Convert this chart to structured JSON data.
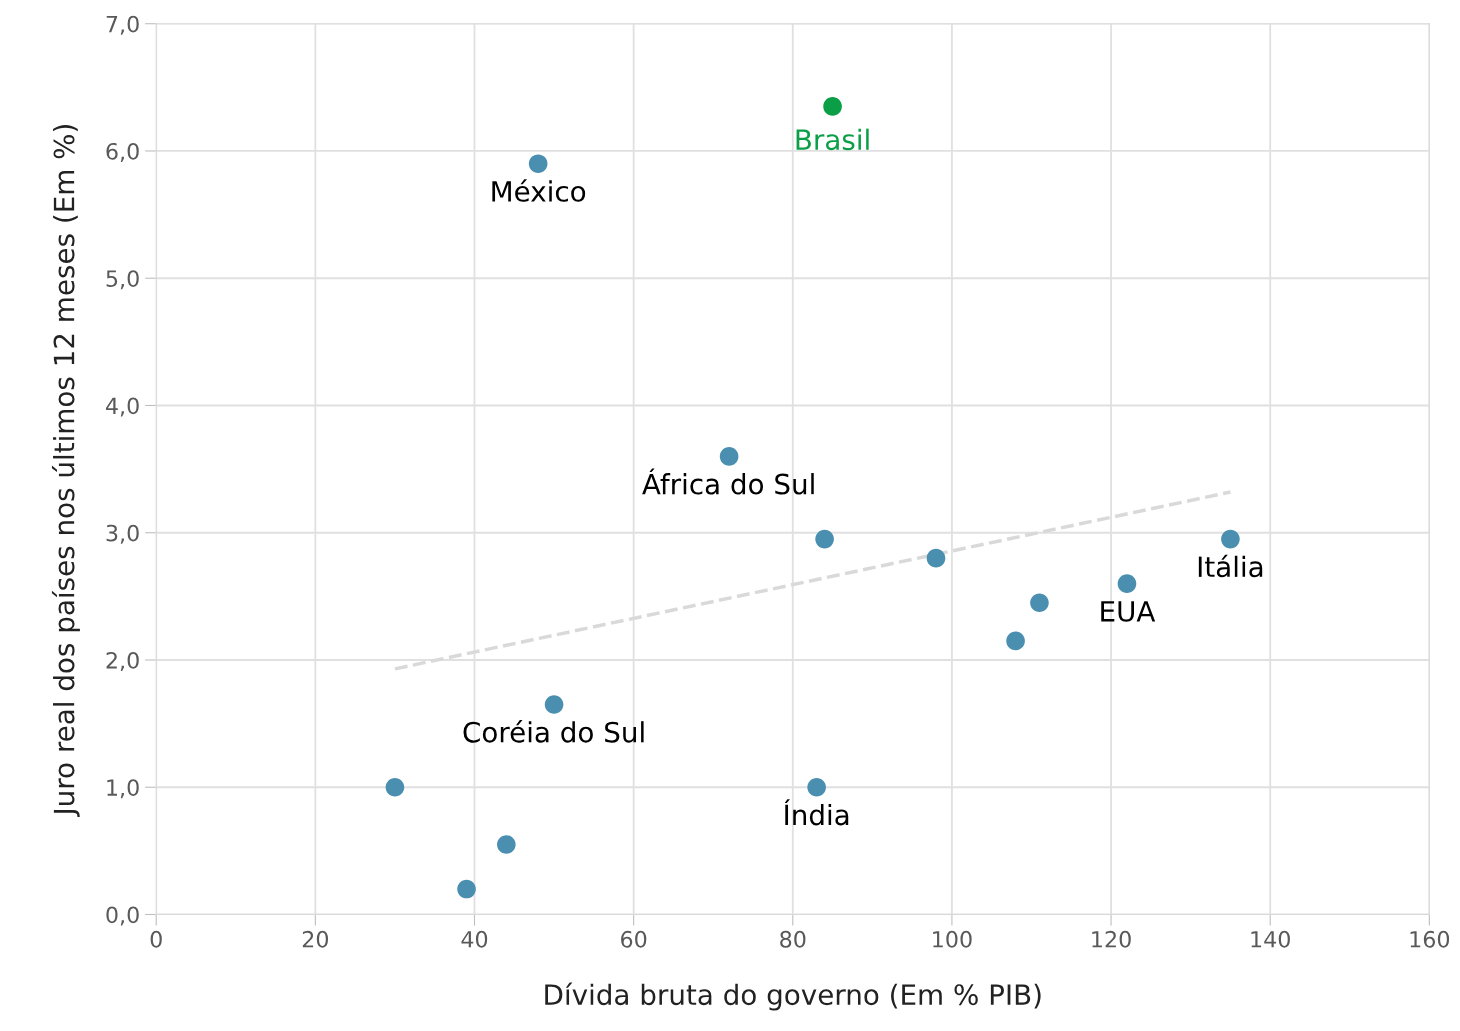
{
  "chart_data": {
    "type": "scatter",
    "xlabel": "Dívida bruta do governo (Em % PIB)",
    "ylabel": "Juro real dos países nos últimos 12 meses (Em %)",
    "xlim": [
      0,
      160
    ],
    "xticks": [
      0,
      20,
      40,
      60,
      80,
      100,
      120,
      140,
      160
    ],
    "ylim": [
      0,
      7
    ],
    "yticks": [
      {
        "value": 0,
        "label": "0,0"
      },
      {
        "value": 1,
        "label": "1,0"
      },
      {
        "value": 2,
        "label": "2,0"
      },
      {
        "value": 3,
        "label": "3,0"
      },
      {
        "value": 4,
        "label": "4,0"
      },
      {
        "value": 5,
        "label": "5,0"
      },
      {
        "value": 6,
        "label": "6,0"
      },
      {
        "value": 7,
        "label": "7,0"
      }
    ],
    "grid": true,
    "marker": "circle",
    "series": [
      {
        "color": "#4a8fb0",
        "x": [
          48,
          72,
          84,
          98,
          111,
          108,
          122,
          135,
          50,
          30,
          83,
          44,
          39
        ],
        "values": [
          5.9,
          3.6,
          2.95,
          2.8,
          2.45,
          2.15,
          2.6,
          2.95,
          1.65,
          1.0,
          1.0,
          0.55,
          0.2
        ]
      },
      {
        "name": "Brasil",
        "color": "#0a9e47",
        "x": [
          85
        ],
        "values": [
          6.35
        ]
      },
      {
        "type": "line",
        "marker": "none",
        "line_style": "dashed",
        "color": "#d9d9d9",
        "x": [
          30,
          135
        ],
        "values": [
          1.93,
          3.32
        ]
      }
    ],
    "annotations": [
      {
        "text": "México",
        "x": 48,
        "y": 5.9
      },
      {
        "text": "África do Sul",
        "x": 72,
        "y": 3.6
      },
      {
        "text": "Itália",
        "x": 135,
        "y": 2.95
      },
      {
        "text": "EUA",
        "x": 122,
        "y": 2.6
      },
      {
        "text": "Coréia do Sul",
        "x": 50,
        "y": 1.65
      },
      {
        "text": "Índia",
        "x": 83,
        "y": 1.0
      }
    ]
  }
}
